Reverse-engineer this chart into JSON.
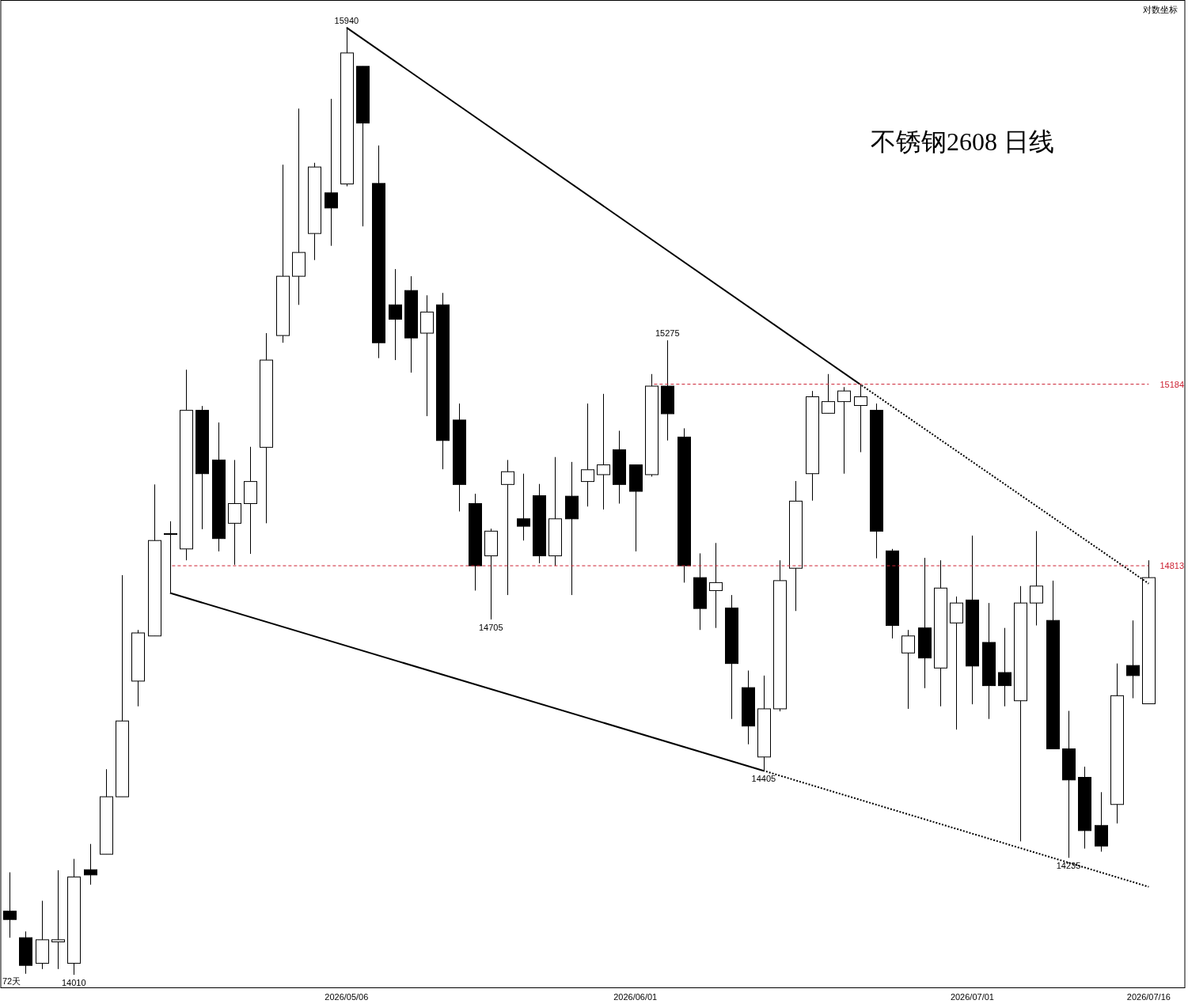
{
  "chart_data": {
    "type": "candlestick",
    "title": "不锈钢2608 日线",
    "log": true,
    "ylim": [
      13986,
      16000
    ],
    "yticks": [
      14813,
      15184
    ],
    "categories": [
      null,
      null,
      null,
      null,
      null,
      null,
      null,
      null,
      null,
      null,
      null,
      null,
      null,
      null,
      null,
      null,
      null,
      null,
      null,
      null,
      null,
      "2026/05/06",
      null,
      null,
      null,
      null,
      null,
      null,
      null,
      null,
      null,
      null,
      null,
      null,
      null,
      null,
      null,
      null,
      null,
      "2026/06/01",
      null,
      null,
      null,
      null,
      null,
      null,
      null,
      null,
      null,
      null,
      null,
      null,
      null,
      null,
      null,
      null,
      null,
      null,
      null,
      null,
      "2026/07/01",
      null,
      null,
      null,
      null,
      null,
      null,
      null,
      null,
      null,
      null,
      "2026/07/16"
    ],
    "ohlc": [
      [
        14132,
        14207,
        14081,
        14116
      ],
      [
        14081,
        14093,
        14012,
        14028
      ],
      [
        14032,
        14152,
        14021,
        14077
      ],
      [
        14073,
        14211,
        14021,
        14077
      ],
      [
        14032,
        14233,
        14010,
        14198
      ],
      [
        14212,
        14262,
        14183,
        14202
      ],
      [
        14242,
        14408,
        14242,
        14354
      ],
      [
        14354,
        14794,
        14354,
        14503
      ],
      [
        14582,
        14684,
        14532,
        14678
      ],
      [
        14672,
        14978,
        14672,
        14864
      ],
      [
        14878,
        14903,
        14758,
        14878
      ],
      [
        14847,
        15214,
        14824,
        15130
      ],
      [
        15130,
        15139,
        14887,
        15000
      ],
      [
        15028,
        15105,
        14842,
        14868
      ],
      [
        14899,
        15028,
        14815,
        14939
      ],
      [
        14939,
        15055,
        14837,
        14984
      ],
      [
        15054,
        15290,
        14899,
        15234
      ],
      [
        15285,
        15645,
        15270,
        15409
      ],
      [
        15409,
        15765,
        15349,
        15459
      ],
      [
        15499,
        15649,
        15443,
        15640
      ],
      [
        15585,
        15786,
        15473,
        15553
      ],
      [
        15604,
        15940,
        15599,
        15885
      ],
      [
        15856,
        15856,
        15514,
        15734
      ],
      [
        15605,
        15686,
        15238,
        15270
      ],
      [
        15349,
        15424,
        15234,
        15319
      ],
      [
        15379,
        15409,
        15208,
        15280
      ],
      [
        15290,
        15369,
        15118,
        15334
      ],
      [
        15349,
        15374,
        15009,
        15068
      ],
      [
        15110,
        15144,
        14923,
        14978
      ],
      [
        14939,
        14959,
        14763,
        14813
      ],
      [
        14833,
        14888,
        14705,
        14883
      ],
      [
        14978,
        15028,
        14754,
        15004
      ],
      [
        14908,
        15000,
        14864,
        14893
      ],
      [
        14955,
        14979,
        14818,
        14833
      ],
      [
        14833,
        15034,
        14813,
        14908
      ],
      [
        14954,
        15024,
        14754,
        14908
      ],
      [
        14984,
        15144,
        14933,
        15008
      ],
      [
        14998,
        15164,
        14927,
        15018
      ],
      [
        15049,
        15088,
        14939,
        14978
      ],
      [
        15018,
        15018,
        14842,
        14964
      ],
      [
        14998,
        15205,
        14994,
        15180
      ],
      [
        15180,
        15275,
        15068,
        15123
      ],
      [
        15075,
        15093,
        14779,
        14813
      ],
      [
        14789,
        14838,
        14684,
        14727
      ],
      [
        14763,
        14859,
        14688,
        14779
      ],
      [
        14728,
        14754,
        14507,
        14617
      ],
      [
        14569,
        14603,
        14457,
        14493
      ],
      [
        14432,
        14593,
        14405,
        14527
      ],
      [
        14527,
        14824,
        14522,
        14783
      ],
      [
        14808,
        14985,
        14722,
        14944
      ],
      [
        15000,
        15170,
        14945,
        15158
      ],
      [
        15124,
        15205,
        15124,
        15148
      ],
      [
        15148,
        15178,
        15000,
        15170
      ],
      [
        15140,
        15184,
        15044,
        15158
      ],
      [
        15130,
        15144,
        14828,
        14883
      ],
      [
        14843,
        14847,
        14667,
        14693
      ],
      [
        14638,
        14684,
        14527,
        14672
      ],
      [
        14688,
        14829,
        14568,
        14628
      ],
      [
        14608,
        14824,
        14532,
        14768
      ],
      [
        14698,
        14751,
        14486,
        14738
      ],
      [
        14744,
        14874,
        14536,
        14612
      ],
      [
        14659,
        14738,
        14507,
        14573
      ],
      [
        14599,
        14688,
        14532,
        14573
      ],
      [
        14543,
        14772,
        14267,
        14738
      ],
      [
        14738,
        14883,
        14693,
        14772
      ],
      [
        14703,
        14783,
        14448,
        14448
      ],
      [
        14448,
        14523,
        14235,
        14387
      ],
      [
        14392,
        14413,
        14253,
        14288
      ],
      [
        14298,
        14363,
        14247,
        14258
      ],
      [
        14339,
        14617,
        14302,
        14553
      ],
      [
        14613,
        14703,
        14548,
        14593
      ],
      [
        14537,
        14824,
        14537,
        14789
      ]
    ],
    "series": [
      {
        "type": "line",
        "color": "#000000",
        "line_style": "solid",
        "values": [
          null,
          null,
          null,
          null,
          null,
          null,
          null,
          null,
          null,
          null,
          null,
          null,
          null,
          null,
          null,
          null,
          null,
          null,
          null,
          null,
          null,
          15940,
          null,
          null,
          null,
          null,
          null,
          null,
          null,
          null,
          null,
          null,
          null,
          null,
          null,
          null,
          null,
          null,
          null,
          null,
          null,
          null,
          null,
          null,
          null,
          null,
          null,
          null,
          null,
          null,
          null,
          null,
          null,
          15184,
          null,
          null,
          null,
          null,
          null,
          null,
          null,
          null,
          null,
          null,
          null,
          null,
          null,
          null,
          null,
          null,
          null,
          null
        ]
      },
      {
        "type": "line",
        "color": "#000000",
        "line_style": "dotted",
        "values": [
          null,
          null,
          null,
          null,
          null,
          null,
          null,
          null,
          null,
          null,
          null,
          null,
          null,
          null,
          null,
          null,
          null,
          null,
          null,
          null,
          null,
          null,
          null,
          null,
          null,
          null,
          null,
          null,
          null,
          null,
          null,
          null,
          null,
          null,
          null,
          null,
          null,
          null,
          null,
          null,
          null,
          null,
          null,
          null,
          null,
          null,
          null,
          null,
          null,
          null,
          null,
          null,
          null,
          15184,
          null,
          null,
          null,
          null,
          null,
          null,
          null,
          null,
          null,
          null,
          null,
          null,
          null,
          null,
          null,
          null,
          null,
          14777
        ]
      },
      {
        "type": "line",
        "color": "#000000",
        "line_style": "solid",
        "values": [
          null,
          null,
          null,
          null,
          null,
          null,
          null,
          null,
          null,
          null,
          14758,
          null,
          null,
          null,
          null,
          null,
          null,
          null,
          null,
          null,
          null,
          null,
          null,
          null,
          null,
          null,
          null,
          null,
          null,
          null,
          null,
          null,
          null,
          null,
          null,
          null,
          null,
          null,
          null,
          null,
          null,
          null,
          null,
          null,
          null,
          null,
          null,
          14405,
          null,
          null,
          null,
          null,
          null,
          null,
          null,
          null,
          null,
          null,
          null,
          null,
          null,
          null,
          null,
          null,
          null,
          null,
          null,
          null,
          null,
          null,
          null,
          null
        ]
      },
      {
        "type": "line",
        "color": "#000000",
        "line_style": "dotted",
        "values": [
          null,
          null,
          null,
          null,
          null,
          null,
          null,
          null,
          null,
          null,
          null,
          null,
          null,
          null,
          null,
          null,
          null,
          null,
          null,
          null,
          null,
          null,
          null,
          null,
          null,
          null,
          null,
          null,
          null,
          null,
          null,
          null,
          null,
          null,
          null,
          null,
          null,
          null,
          null,
          null,
          null,
          null,
          null,
          null,
          null,
          null,
          null,
          14405,
          null,
          null,
          null,
          null,
          null,
          null,
          null,
          null,
          null,
          null,
          null,
          null,
          null,
          null,
          null,
          null,
          null,
          null,
          null,
          null,
          null,
          null,
          null,
          14179
        ]
      },
      {
        "type": "line",
        "color": "#cc2233",
        "line_style": "dashed",
        "values": [
          null,
          null,
          null,
          null,
          null,
          null,
          null,
          null,
          null,
          null,
          null,
          null,
          null,
          null,
          null,
          null,
          null,
          null,
          null,
          null,
          null,
          null,
          null,
          null,
          null,
          null,
          null,
          null,
          null,
          null,
          null,
          null,
          null,
          null,
          null,
          null,
          null,
          null,
          null,
          null,
          15184,
          null,
          null,
          null,
          null,
          null,
          null,
          null,
          null,
          null,
          null,
          null,
          null,
          null,
          null,
          null,
          null,
          null,
          null,
          null,
          null,
          null,
          null,
          null,
          null,
          null,
          null,
          null,
          null,
          null,
          null,
          15184
        ]
      },
      {
        "type": "line",
        "color": "#cc2233",
        "line_style": "dashed",
        "values": [
          null,
          null,
          null,
          null,
          null,
          null,
          null,
          null,
          null,
          null,
          14813,
          null,
          null,
          null,
          null,
          null,
          null,
          null,
          null,
          null,
          null,
          null,
          null,
          null,
          null,
          null,
          null,
          null,
          null,
          null,
          null,
          null,
          null,
          null,
          null,
          null,
          null,
          null,
          null,
          null,
          null,
          null,
          null,
          null,
          null,
          null,
          null,
          null,
          null,
          null,
          null,
          null,
          null,
          null,
          null,
          null,
          null,
          null,
          null,
          null,
          null,
          null,
          null,
          null,
          null,
          null,
          null,
          null,
          null,
          null,
          null,
          14813
        ]
      }
    ],
    "annotations": [
      "对数坐标",
      "72天",
      {
        "text": "15940",
        "y": 15940
      },
      {
        "text": "15275",
        "y": 15275
      },
      {
        "text": "14705",
        "y": 14705
      },
      {
        "text": "14405",
        "y": 14405
      },
      {
        "text": "14235",
        "y": 14235
      },
      {
        "text": "14010",
        "y": 14010
      }
    ]
  }
}
